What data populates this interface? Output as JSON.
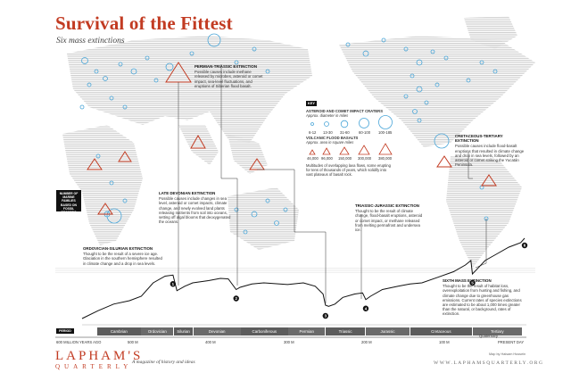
{
  "header": {
    "title": "Survival of the Fittest",
    "subtitle": "Six mass extinctions"
  },
  "legend": {
    "key_label": "KEY",
    "craters_heading": "ASTEROID AND COMET IMPACT CRATERS",
    "craters_sub": "Approx. diameter in miles",
    "crater_sizes": [
      "6-12",
      "13-30",
      "31-60",
      "60-100",
      "100-185"
    ],
    "basalts_heading": "VOLCANIC FLOOD BASALTS",
    "basalts_sub": "Approx. area in square miles",
    "basalt_sizes": [
      "46,000",
      "96,000",
      "150,000",
      "300,000",
      "380,000"
    ],
    "basalts_note": "Multitudes of overlapping lava flows, some erupting for tens of thousands of years, which solidify into vast plateaus of basalt rock."
  },
  "callouts": {
    "permian": {
      "title": "PERMIAN-TRIASSIC EXTINCTION",
      "text": "Possible causes include methane released by microbes, asteroid or comet impact, sea-level fluctuations, and eruptions of Siberian flood basalt."
    },
    "cretaceous": {
      "title": "CRETACEOUS-TERTIARY EXTINCTION",
      "text": "Possible causes include flood-basalt eruptions that resulted in climate change and drop in sea levels, followed by an asteroid or comet striking the Yucatán Peninsula."
    },
    "devonian": {
      "title": "LATE DEVONIAN EXTINCTION",
      "text": "Possible causes include changes in sea level, asteroid or comet impacts, climate change, and newly evolved land plants releasing nutrients from soil into oceans, setting off algal blooms that deoxygenated the oceans."
    },
    "triassic": {
      "title": "TRIASSIC-JURASSIC EXTINCTION",
      "text": "Thought to be the result of climate change, flood-basalt eruptions, asteroid or comet impact, or methane released from melting permafrost and undersea ice."
    },
    "ordovician": {
      "title": "ORDOVICIAN-SILURIAN EXTINCTION",
      "text": "Thought to be the result of a severe ice age. Glaciation in the southern hemisphere resulted in climate change and a drop in sea levels."
    },
    "sixth": {
      "title": "SIXTH MASS EXTINCTION",
      "text": "Thought to be the result of habitat loss, overexploitation from hunting and fishing, and climate change due to greenhouse gas emissions. Current rates of species extinctions are estimated to be about 1,000 times greater than the natural, or background, rates of extinction."
    }
  },
  "chart": {
    "ylabel": "NUMBER OF MARINE FAMILIES BASED ON FOSSIL RECORDS",
    "period_label": "PERIOD",
    "markers": [
      "1",
      "2",
      "3",
      "4",
      "5",
      "6"
    ],
    "periods": [
      "Cambrian",
      "Ordovician",
      "Silurian",
      "Devonian",
      "Carboniferous",
      "Permian",
      "Triassic",
      "Jurassic",
      "Cretaceous",
      "Tertiary"
    ],
    "quaternary_label": "Quaternary",
    "ticks": [
      "600 MILLION YEARS AGO",
      "500 M",
      "400 M",
      "300 M",
      "200 M",
      "100 M",
      "PRESENT DAY"
    ]
  },
  "chart_data": {
    "type": "line",
    "title": "",
    "xlabel": "",
    "ylabel": "NUMBER OF MARINE FAMILIES BASED ON FOSSIL RECORDS",
    "x": [
      -560,
      -540,
      -520,
      -500,
      -485,
      -470,
      -455,
      -445,
      -440,
      -430,
      -420,
      -400,
      -385,
      -375,
      -365,
      -360,
      -345,
      -330,
      -300,
      -280,
      -265,
      -255,
      -252,
      -248,
      -240,
      -230,
      -215,
      -205,
      -201,
      -195,
      -180,
      -160,
      -145,
      -130,
      -110,
      -90,
      -75,
      -68,
      -66,
      -62,
      -50,
      -35,
      -20,
      -5,
      0
    ],
    "values": [
      40,
      110,
      170,
      200,
      240,
      360,
      420,
      430,
      290,
      330,
      360,
      380,
      400,
      395,
      300,
      320,
      350,
      360,
      345,
      360,
      330,
      260,
      160,
      150,
      170,
      230,
      260,
      270,
      210,
      240,
      300,
      330,
      350,
      360,
      410,
      460,
      520,
      560,
      440,
      470,
      560,
      620,
      680,
      720,
      760
    ],
    "ylim": [
      0,
      800
    ]
  },
  "footer": {
    "logo": "LAPHAM'S",
    "logo_sub": "QUARTERLY",
    "tagline": "A magazine of history and ideas",
    "url": "WWW.LAPHAMSQUARTERLY.ORG",
    "credit": "Map by Haisam Hussein"
  },
  "colors": {
    "accent": "#c23b22",
    "crater": "#4aa6d8",
    "basalt": "#c23b22",
    "land": "#d9d9d9"
  }
}
